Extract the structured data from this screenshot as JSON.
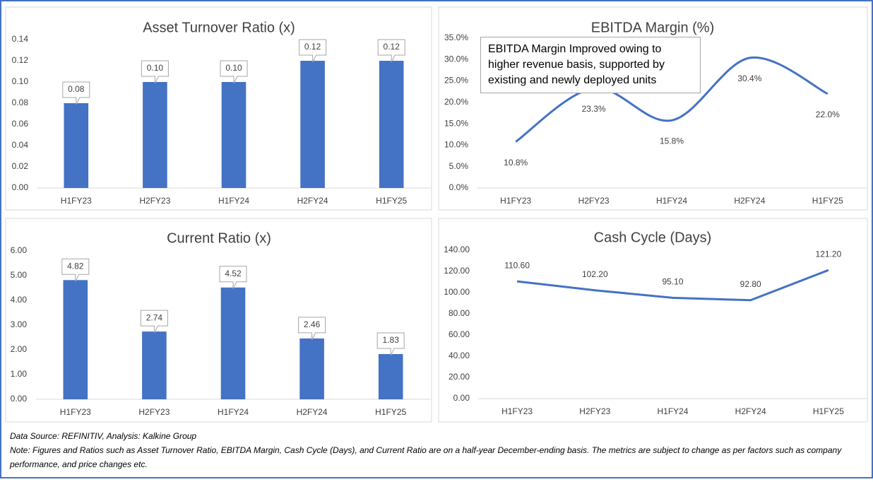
{
  "chart_data": [
    {
      "type": "bar",
      "title": "Asset Turnover Ratio (x)",
      "categories": [
        "H1FY23",
        "H2FY23",
        "H1FY24",
        "H2FY24",
        "H1FY25"
      ],
      "values": [
        0.08,
        0.1,
        0.1,
        0.12,
        0.12
      ],
      "value_labels": [
        "0.08",
        "0.10",
        "0.10",
        "0.12",
        "0.12"
      ],
      "color": "#4472c4",
      "ylim": [
        0,
        0.14
      ],
      "yticks": [
        {
          "value": 0,
          "label": "0.00"
        },
        {
          "value": 0.02,
          "label": "0.02"
        },
        {
          "value": 0.04,
          "label": "0.04"
        },
        {
          "value": 0.06,
          "label": "0.06"
        },
        {
          "value": 0.08,
          "label": "0.08"
        },
        {
          "value": 0.1,
          "label": "0.10"
        },
        {
          "value": 0.12,
          "label": "0.12"
        },
        {
          "value": 0.14,
          "label": "0.14"
        }
      ],
      "grid": false
    },
    {
      "type": "line",
      "title": "EBITDA Margin (%)",
      "categories": [
        "H1FY23",
        "H2FY23",
        "H1FY24",
        "H2FY24",
        "H1FY25"
      ],
      "values": [
        10.8,
        23.3,
        15.8,
        30.4,
        22.0
      ],
      "value_labels": [
        "10.8%",
        "23.3%",
        "15.8%",
        "30.4%",
        "22.0%"
      ],
      "color": "#4472c4",
      "smooth": true,
      "annotation": "EBITDA Margin Improved owing to higher revenue basis, supported by existing and newly deployed units",
      "ylim": [
        0,
        35
      ],
      "yticks": [
        {
          "value": 0,
          "label": "0.0%"
        },
        {
          "value": 5,
          "label": "5.0%"
        },
        {
          "value": 10,
          "label": "10.0%"
        },
        {
          "value": 15,
          "label": "15.0%"
        },
        {
          "value": 20,
          "label": "20.0%"
        },
        {
          "value": 25,
          "label": "25.0%"
        },
        {
          "value": 30,
          "label": "30.0%"
        },
        {
          "value": 35,
          "label": "35.0%"
        }
      ],
      "grid": false
    },
    {
      "type": "bar",
      "title": "Current Ratio (x)",
      "categories": [
        "H1FY23",
        "H2FY23",
        "H1FY24",
        "H2FY24",
        "H1FY25"
      ],
      "values": [
        4.82,
        2.74,
        4.52,
        2.46,
        1.83
      ],
      "value_labels": [
        "4.82",
        "2.74",
        "4.52",
        "2.46",
        "1.83"
      ],
      "color": "#4472c4",
      "ylim": [
        0,
        6
      ],
      "yticks": [
        {
          "value": 0,
          "label": "0.00"
        },
        {
          "value": 1,
          "label": "1.00"
        },
        {
          "value": 2,
          "label": "2.00"
        },
        {
          "value": 3,
          "label": "3.00"
        },
        {
          "value": 4,
          "label": "4.00"
        },
        {
          "value": 5,
          "label": "5.00"
        },
        {
          "value": 6,
          "label": "6.00"
        }
      ],
      "grid": false
    },
    {
      "type": "line",
      "title": "Cash Cycle (Days)",
      "categories": [
        "H1FY23",
        "H2FY23",
        "H1FY24",
        "H2FY24",
        "H1FY25"
      ],
      "values": [
        110.6,
        102.2,
        95.1,
        92.8,
        121.2
      ],
      "value_labels": [
        "110.60",
        "102.20",
        "95.10",
        "92.80",
        "121.20"
      ],
      "color": "#4472c4",
      "smooth": false,
      "ylim": [
        0,
        140
      ],
      "yticks": [
        {
          "value": 0,
          "label": "0.00"
        },
        {
          "value": 20,
          "label": "20.00"
        },
        {
          "value": 40,
          "label": "40.00"
        },
        {
          "value": 60,
          "label": "60.00"
        },
        {
          "value": 80,
          "label": "80.00"
        },
        {
          "value": 100,
          "label": "100.00"
        },
        {
          "value": 120,
          "label": "120.00"
        },
        {
          "value": 140,
          "label": "140.00"
        }
      ],
      "grid": false
    }
  ],
  "notes": [
    "Data Source: REFINITIV, Analysis: Kalkine Group",
    "Note: Figures and Ratios such as Asset Turnover Ratio, EBITDA Margin, Cash Cycle (Days), and Current Ratio  are on a half-year December-ending basis. The metrics are subject to change as per factors such as company performance, and price changes etc."
  ]
}
